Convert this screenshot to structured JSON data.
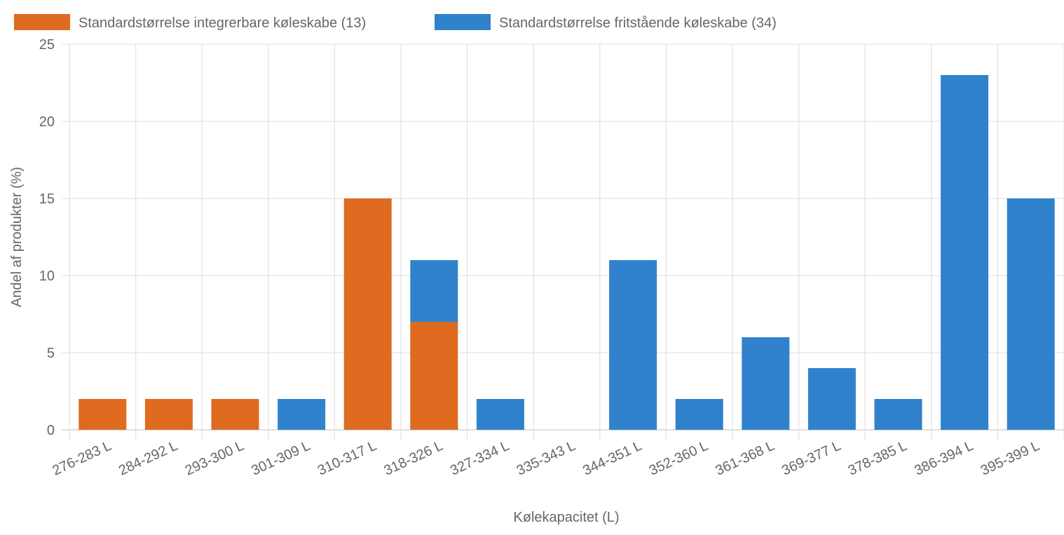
{
  "chart_data": {
    "type": "bar",
    "stacked": true,
    "title": "",
    "xlabel": "Kølekapacitet (L)",
    "ylabel": "Andel af produkter (%)",
    "ylim": [
      0,
      25
    ],
    "yticks": [
      0,
      5,
      10,
      15,
      20,
      25
    ],
    "grid": true,
    "legend_position": "top-left",
    "categories": [
      "276-283 L",
      "284-292 L",
      "293-300 L",
      "301-309 L",
      "310-317 L",
      "318-326 L",
      "327-334 L",
      "335-343 L",
      "344-351 L",
      "352-360 L",
      "361-368 L",
      "369-377 L",
      "378-385 L",
      "386-394 L",
      "395-399 L"
    ],
    "series": [
      {
        "name": "Standardstørrelse integrerbare køleskabe (13)",
        "color": "#de6b20",
        "values": [
          2,
          2,
          2,
          0,
          15,
          7,
          0,
          0,
          0,
          0,
          0,
          0,
          0,
          0,
          0
        ]
      },
      {
        "name": "Standardstørrelse fritstående køleskabe (34)",
        "color": "#3082cc",
        "values": [
          0,
          0,
          0,
          2,
          0,
          4,
          2,
          0,
          11,
          2,
          6,
          4,
          2,
          23,
          15
        ]
      }
    ]
  }
}
